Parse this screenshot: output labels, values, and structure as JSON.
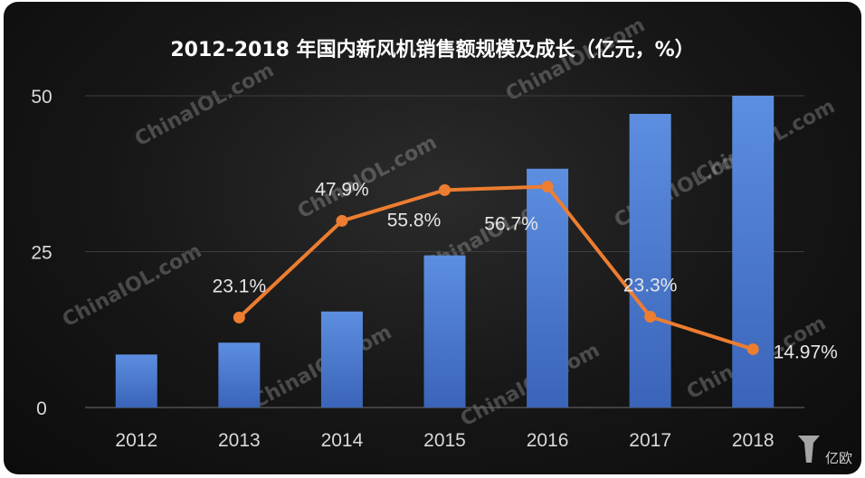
{
  "chart_data": {
    "type": "bar",
    "title": "2012-2018 年国内新风机销售额规模及成长（亿元，%）",
    "categories": [
      "2012",
      "2013",
      "2014",
      "2015",
      "2016",
      "2017",
      "2018"
    ],
    "series": [
      {
        "values": [
          8.5,
          10.4,
          15.4,
          24.4,
          38.3,
          47.1,
          53.0
        ]
      },
      {
        "values": [
          null,
          23.1,
          47.9,
          55.8,
          56.7,
          23.3,
          14.97
        ]
      }
    ],
    "line_labels": [
      "",
      "23.1%",
      "47.9%",
      "55.8%",
      "56.7%",
      "23.3%",
      "14.97%"
    ],
    "y_ticks": [
      "0",
      "25",
      "50"
    ],
    "ylim": [
      0,
      50
    ],
    "y2lim": [
      0,
      80
    ],
    "grid": true,
    "colors": {
      "bar": "#4472c4",
      "line": "#ed7d31"
    }
  },
  "watermark": "ChinaIOL.com",
  "logo_text": "亿欧"
}
